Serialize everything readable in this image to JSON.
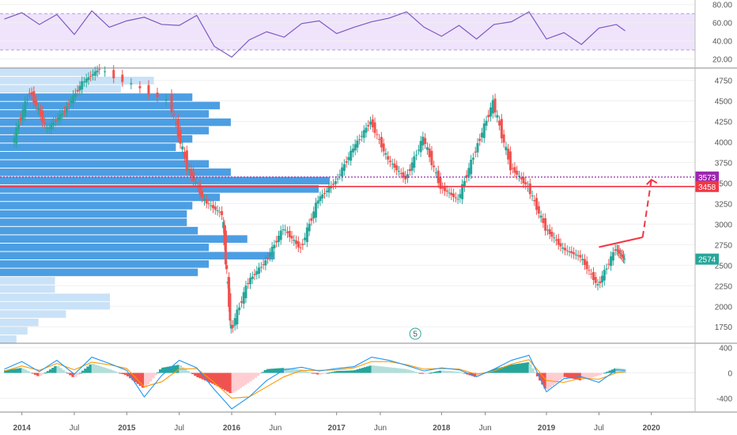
{
  "chart_data": [
    {
      "type": "line",
      "panel": "rsi",
      "ylim": [
        10,
        85
      ],
      "band": [
        30,
        70
      ],
      "yticks": [
        "80.00",
        "60.00",
        "40.00",
        "20.00"
      ],
      "ytick_values": [
        80,
        60,
        40,
        20
      ],
      "x": [
        "2013-11",
        "2014-01",
        "2014-03",
        "2014-05",
        "2014-07",
        "2014-09",
        "2014-11",
        "2015-01",
        "2015-03",
        "2015-05",
        "2015-07",
        "2015-09",
        "2015-11",
        "2016-01",
        "2016-03",
        "2016-05",
        "2016-07",
        "2016-09",
        "2016-11",
        "2017-01",
        "2017-03",
        "2017-05",
        "2017-07",
        "2017-09",
        "2017-11",
        "2018-01",
        "2018-03",
        "2018-05",
        "2018-07",
        "2018-09",
        "2018-11",
        "2019-01",
        "2019-03",
        "2019-05",
        "2019-07",
        "2019-09",
        "2019-10"
      ],
      "values": [
        64,
        71,
        58,
        69,
        47,
        73,
        55,
        62,
        66,
        58,
        57,
        68,
        34,
        22,
        41,
        50,
        44,
        59,
        62,
        48,
        55,
        61,
        65,
        72,
        55,
        45,
        57,
        42,
        58,
        61,
        72,
        42,
        49,
        36,
        54,
        58,
        51
      ],
      "line_color": "#7e57c2",
      "band_color": "#efe4fb"
    },
    {
      "type": "candlestick",
      "panel": "price",
      "ylim": [
        1550,
        4900
      ],
      "yticks": [
        "4750",
        "4500",
        "4250",
        "4000",
        "3750",
        "3500",
        "3250",
        "3000",
        "2750",
        "2500",
        "2250",
        "2000",
        "1750"
      ],
      "ytick_values": [
        4750,
        4500,
        4250,
        4000,
        3750,
        3500,
        3250,
        3000,
        2750,
        2500,
        2250,
        2000,
        1750
      ],
      "x": [
        "2013-12",
        "2014-02",
        "2014-04",
        "2014-06",
        "2014-08",
        "2014-10",
        "2015-06",
        "2015-08",
        "2015-10",
        "2015-12",
        "2016-01",
        "2016-03",
        "2016-05",
        "2016-07",
        "2016-09",
        "2016-11",
        "2017-01",
        "2017-03",
        "2017-05",
        "2017-07",
        "2017-09",
        "2017-11",
        "2018-01",
        "2018-03",
        "2018-05",
        "2018-07",
        "2018-09",
        "2018-11",
        "2019-01",
        "2019-03",
        "2019-05",
        "2019-07",
        "2019-09",
        "2019-10"
      ],
      "close": [
        3980,
        4620,
        4150,
        4380,
        4720,
        4890,
        4500,
        3700,
        3280,
        3120,
        1700,
        2300,
        2550,
        2950,
        2700,
        3300,
        3520,
        3920,
        4250,
        3780,
        3550,
        4050,
        3450,
        3300,
        3900,
        4480,
        3700,
        3450,
        2950,
        2700,
        2600,
        2250,
        2700,
        2574
      ],
      "up_color": "#26a69a",
      "down_color": "#ef5350",
      "hlines": [
        {
          "value": 3573,
          "label": "3573",
          "color": "#9c27b0",
          "style": "dotted"
        },
        {
          "value": 3458,
          "label": "3458",
          "color": "#f23645",
          "style": "solid"
        }
      ],
      "last_price": {
        "value": 2574,
        "label": "2574",
        "color": "#26a69a"
      },
      "trendline": {
        "x": [
          "2019-07",
          "2019-12"
        ],
        "y": [
          2720,
          2840
        ],
        "color": "#f23645"
      },
      "projection": {
        "x": [
          "2019-12",
          "2020-01"
        ],
        "y": [
          2840,
          3540
        ],
        "color": "#f23645"
      },
      "volume_profile": {
        "levels": [
          4800,
          4700,
          4600,
          4500,
          4400,
          4300,
          4200,
          4100,
          4000,
          3900,
          3800,
          3700,
          3600,
          3500,
          3400,
          3300,
          3200,
          3100,
          3000,
          2900,
          2800,
          2700,
          2600,
          2500,
          2400,
          2300,
          2200,
          2100,
          2000,
          1900,
          1800,
          1700,
          1600
        ],
        "volumes": [
          18,
          28,
          22,
          35,
          40,
          38,
          42,
          38,
          35,
          32,
          34,
          38,
          42,
          60,
          58,
          40,
          35,
          34,
          34,
          36,
          45,
          38,
          50,
          38,
          36,
          10,
          10,
          20,
          20,
          12,
          7,
          5,
          3
        ],
        "strong_color": "#4c9ee3",
        "weak_color": "#c9e2f7"
      },
      "marker": "5"
    },
    {
      "type": "bar",
      "panel": "macd",
      "ylim": [
        -620,
        470
      ],
      "yticks": [
        "400",
        "0",
        "-400"
      ],
      "ytick_values": [
        400,
        0,
        -400
      ],
      "x": [
        "2013-11",
        "2014-01",
        "2014-03",
        "2014-05",
        "2014-07",
        "2014-09",
        "2014-11",
        "2015-01",
        "2015-03",
        "2015-05",
        "2015-07",
        "2015-09",
        "2015-11",
        "2016-01",
        "2016-03",
        "2016-05",
        "2016-07",
        "2016-09",
        "2016-11",
        "2017-01",
        "2017-03",
        "2017-05",
        "2017-07",
        "2017-09",
        "2017-11",
        "2018-01",
        "2018-03",
        "2018-05",
        "2018-07",
        "2018-09",
        "2018-11",
        "2019-01",
        "2019-03",
        "2019-05",
        "2019-07",
        "2019-09",
        "2019-10"
      ],
      "histogram": [
        40,
        80,
        -60,
        120,
        -80,
        150,
        60,
        -40,
        -250,
        80,
        130,
        -60,
        -180,
        -330,
        -150,
        60,
        80,
        50,
        -30,
        30,
        40,
        120,
        90,
        60,
        -20,
        40,
        20,
        -70,
        60,
        130,
        170,
        -280,
        -60,
        -120,
        -40,
        80,
        60
      ],
      "macd": [
        60,
        180,
        20,
        200,
        -20,
        250,
        150,
        40,
        -380,
        -40,
        200,
        80,
        -260,
        -570,
        -380,
        -120,
        50,
        90,
        30,
        70,
        100,
        250,
        200,
        120,
        30,
        80,
        50,
        -60,
        60,
        200,
        280,
        -300,
        -90,
        -60,
        -150,
        50,
        40
      ],
      "signal": [
        30,
        110,
        40,
        150,
        50,
        170,
        130,
        70,
        -220,
        -140,
        60,
        70,
        -150,
        -400,
        -380,
        -220,
        -60,
        40,
        40,
        50,
        80,
        180,
        180,
        130,
        60,
        70,
        60,
        -20,
        30,
        140,
        210,
        -120,
        -150,
        -80,
        -100,
        0,
        20
      ],
      "macd_color": "#2196f3",
      "signal_color": "#ff9800"
    }
  ],
  "x_axis_labels": [
    "2014",
    "Jul",
    "2015",
    "Jul",
    "2016",
    "Jun",
    "2017",
    "Jun",
    "2018",
    "Jun",
    "2019",
    "Jul",
    "2020"
  ],
  "x_axis_dates": [
    "2014-01",
    "2014-07",
    "2015-01",
    "2015-07",
    "2016-01",
    "2016-06",
    "2017-01",
    "2017-06",
    "2018-01",
    "2018-06",
    "2019-01",
    "2019-07",
    "2020-01"
  ]
}
